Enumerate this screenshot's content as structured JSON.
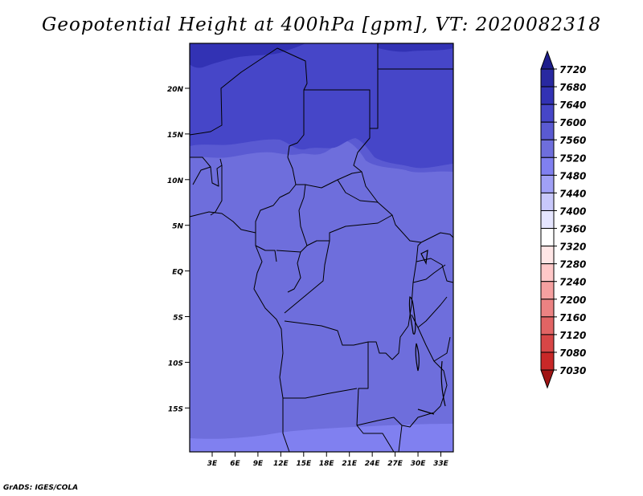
{
  "title": "Geopotential Height at 400hPa [gpm], VT: 2020082318",
  "credit": "GrADS: IGES/COLA",
  "map": {
    "lat_labels": [
      "20N",
      "15N",
      "10N",
      "5N",
      "EQ",
      "5S",
      "10S",
      "15S"
    ],
    "lon_labels": [
      "3E",
      "6E",
      "9E",
      "12E",
      "15E",
      "18E",
      "21E",
      "24E",
      "27E",
      "30E",
      "33E"
    ],
    "field_colors": {
      "band_7640_7680": "#3232b4",
      "band_7600_7640": "#4646c8",
      "band_7560_7600": "#5a5ad2",
      "band_7520_7560": "#6e6edc",
      "band_7480_7520": "#8080f0"
    }
  },
  "colorbar": {
    "labels": [
      "7720",
      "7680",
      "7640",
      "7600",
      "7560",
      "7520",
      "7480",
      "7440",
      "7400",
      "7360",
      "7320",
      "7280",
      "7240",
      "7200",
      "7160",
      "7120",
      "7080",
      "7030"
    ],
    "colors": [
      "#1e1e8c",
      "#2828a0",
      "#3232b4",
      "#4646c8",
      "#5a5ad2",
      "#6e6edc",
      "#8080f0",
      "#a0a0f5",
      "#c8c8fa",
      "#e6e6ff",
      "#ffffff",
      "#ffe6e6",
      "#ffc8c8",
      "#f5a0a0",
      "#eb8282",
      "#e16464",
      "#d74646",
      "#c82828",
      "#a01414"
    ]
  }
}
